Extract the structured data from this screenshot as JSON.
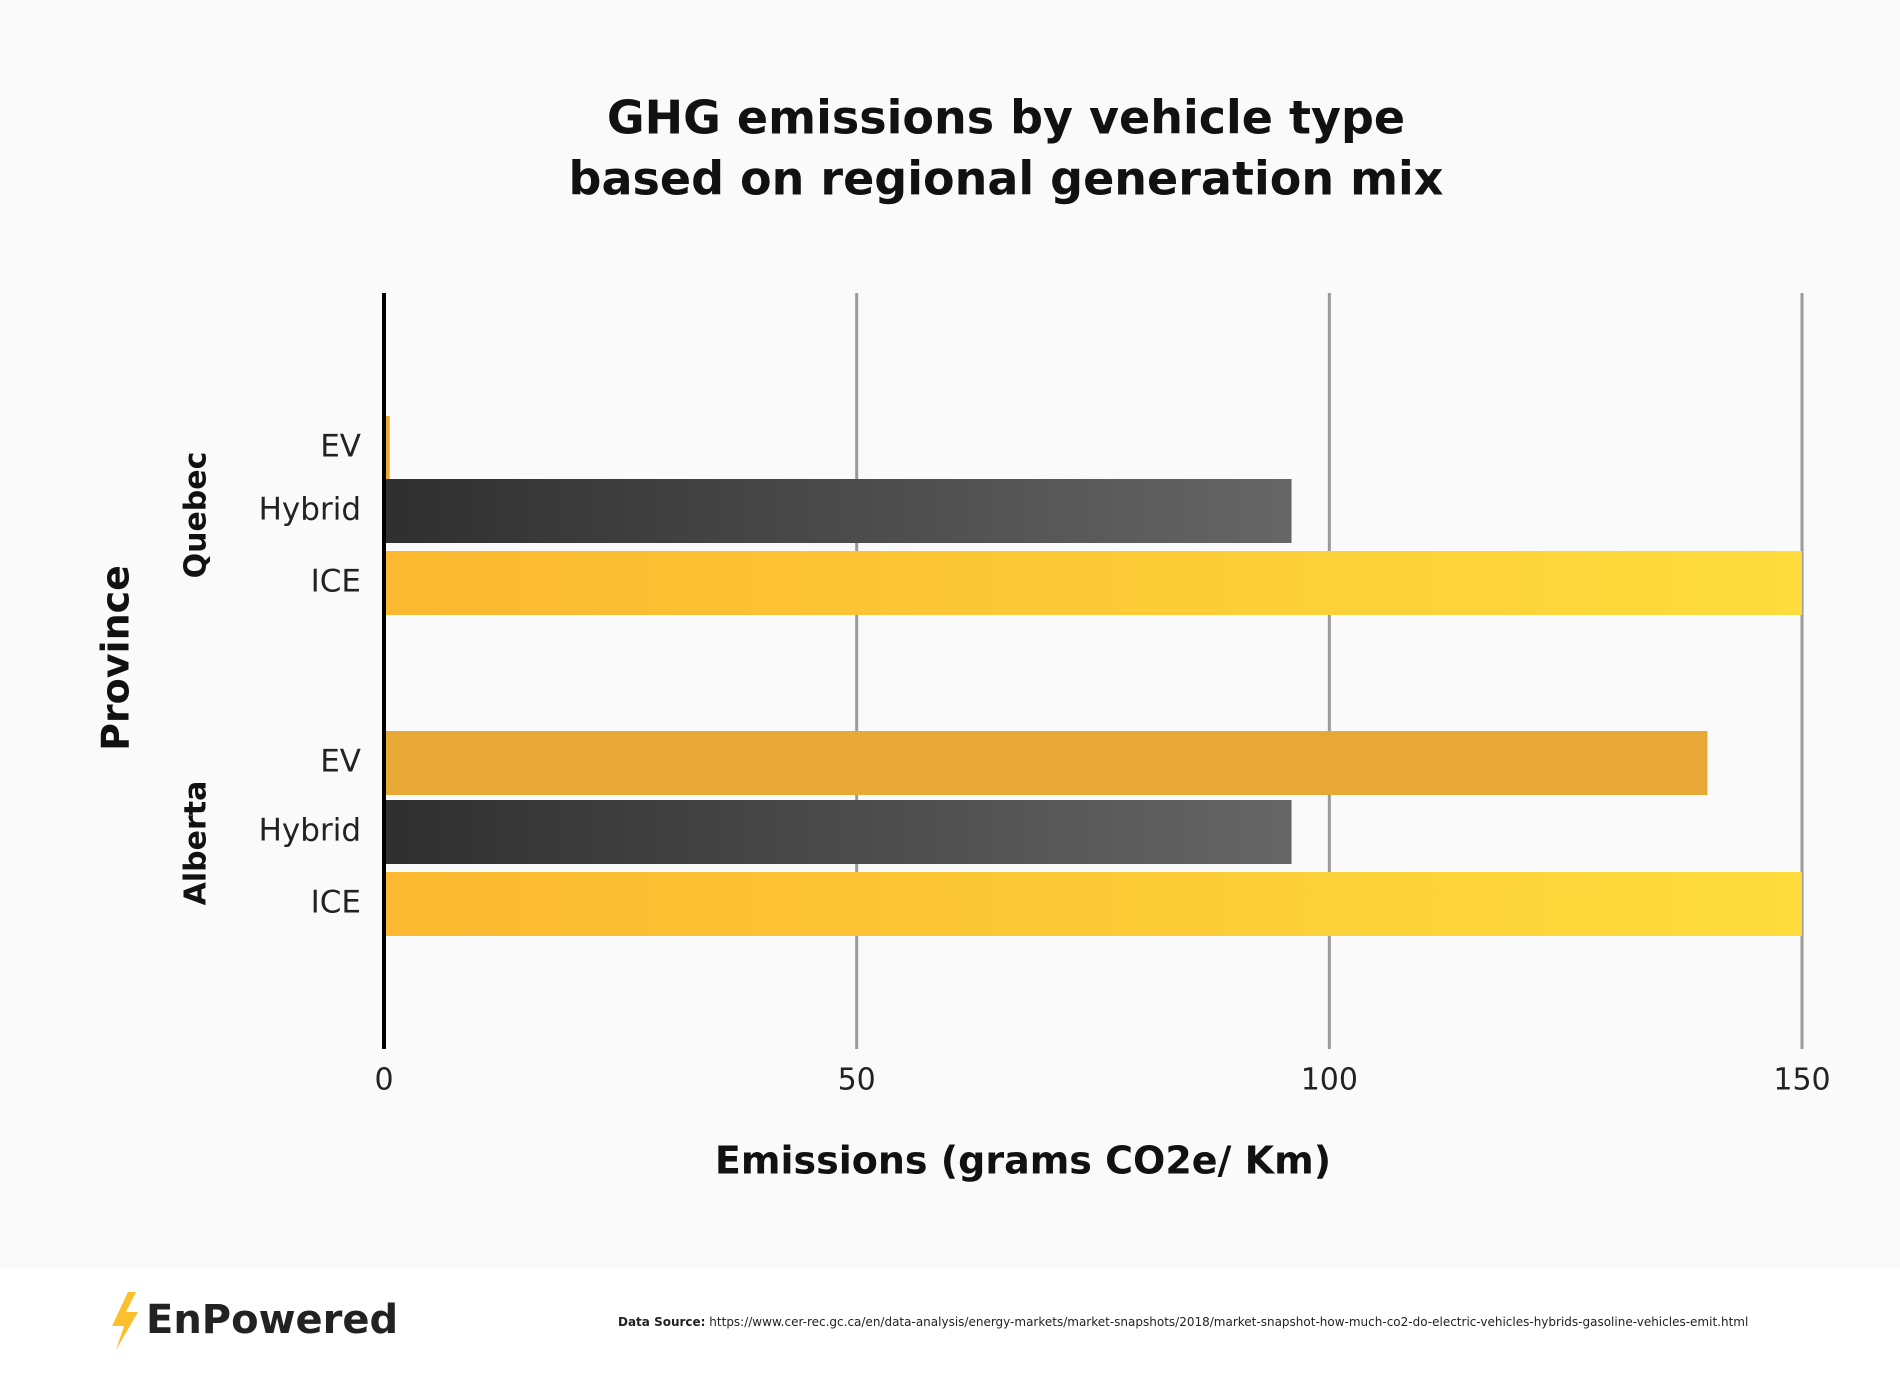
{
  "chart_data": {
    "type": "grouped_hbar",
    "title": [
      "GHG emissions by vehicle type",
      "based on regional generation mix"
    ],
    "x_label": "Emissions (grams CO2e/ Km)",
    "y_label": "Province",
    "groups": [
      {
        "name": "Quebec",
        "categories": [
          "EV",
          "Hybrid",
          "ICE"
        ],
        "values": [
          0.6,
          96,
          150
        ]
      },
      {
        "name": "Alberta",
        "categories": [
          "EV",
          "Hybrid",
          "ICE"
        ],
        "values": [
          140,
          96,
          150
        ]
      }
    ],
    "category_colors": [
      [
        "#e8a835",
        "#e8a835"
      ],
      [
        "#2f2f2f",
        "#666666"
      ],
      [
        "#fbb830",
        "#fddc3c"
      ]
    ],
    "xlim": [
      0,
      150
    ],
    "xticks": [
      0,
      50,
      100,
      150
    ],
    "grid": true
  },
  "footer": {
    "logo": "EnPowered",
    "source_label": "Data Source:",
    "source_url": "https://www.cer-rec.gc.ca/en/data-analysis/energy-markets/market-snapshots/2018/market-snapshot-how-much-co2-do-electric-vehicles-hybrids-gasoline-vehicles-emit.html"
  }
}
